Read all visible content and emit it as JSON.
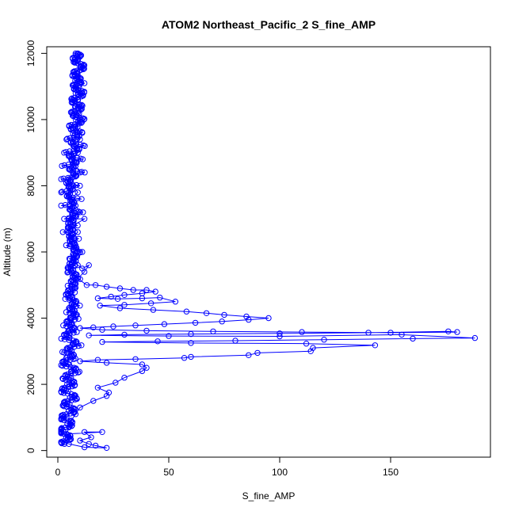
{
  "chart_data": {
    "type": "scatter",
    "title": "ATOM2 Northeast_Pacific_2 S_fine_AMP",
    "xlabel": "S_fine_AMP",
    "ylabel": "Altitude (m)",
    "xlim": [
      -5,
      195
    ],
    "ylim": [
      -200,
      12200
    ],
    "xticks": [
      0,
      50,
      100,
      150
    ],
    "yticks": [
      0,
      2000,
      4000,
      6000,
      8000,
      10000,
      12000
    ],
    "grid": false,
    "legend": "none",
    "series": [
      {
        "marker": "open-circle",
        "connected": true,
        "color": "#0000ff",
        "points": [
          [
            9,
            12000
          ],
          [
            8,
            11950
          ],
          [
            10,
            11900
          ],
          [
            9,
            11800
          ],
          [
            8,
            11750
          ],
          [
            9,
            11700
          ],
          [
            10,
            11500
          ],
          [
            9,
            11300
          ],
          [
            10,
            11100
          ],
          [
            12,
            11100
          ],
          [
            9,
            10900
          ],
          [
            10,
            10800
          ],
          [
            8,
            10800
          ],
          [
            9,
            10600
          ],
          [
            8,
            10400
          ],
          [
            9,
            10200
          ],
          [
            10,
            10000
          ],
          [
            8,
            9800
          ],
          [
            9,
            9600
          ],
          [
            10,
            9400
          ],
          [
            7,
            9200
          ],
          [
            9,
            9000
          ],
          [
            6,
            8800
          ],
          [
            8,
            8600
          ],
          [
            10,
            8400
          ],
          [
            5,
            8200
          ],
          [
            7,
            8000
          ],
          [
            9,
            7800
          ],
          [
            6,
            7600
          ],
          [
            8,
            7400
          ],
          [
            10,
            7200
          ],
          [
            5,
            7000
          ],
          [
            12,
            7000
          ],
          [
            7,
            6800
          ],
          [
            9,
            6600
          ],
          [
            6,
            6400
          ],
          [
            8,
            6200
          ],
          [
            10,
            6000
          ],
          [
            7,
            5800
          ],
          [
            9,
            5600
          ],
          [
            11,
            5500
          ],
          [
            14,
            5600
          ],
          [
            12,
            5400
          ],
          [
            9,
            5200
          ],
          [
            13,
            5000
          ],
          [
            17,
            5000
          ],
          [
            22,
            4950
          ],
          [
            28,
            4900
          ],
          [
            34,
            4850
          ],
          [
            40,
            4850
          ],
          [
            44,
            4800
          ],
          [
            38,
            4750
          ],
          [
            30,
            4700
          ],
          [
            24,
            4650
          ],
          [
            18,
            4600
          ],
          [
            27,
            4580
          ],
          [
            38,
            4600
          ],
          [
            46,
            4620
          ],
          [
            53,
            4500
          ],
          [
            42,
            4450
          ],
          [
            30,
            4400
          ],
          [
            19,
            4380
          ],
          [
            28,
            4300
          ],
          [
            43,
            4250
          ],
          [
            58,
            4200
          ],
          [
            67,
            4150
          ],
          [
            75,
            4100
          ],
          [
            85,
            4050
          ],
          [
            95,
            4000
          ],
          [
            86,
            3950
          ],
          [
            74,
            3900
          ],
          [
            62,
            3860
          ],
          [
            48,
            3820
          ],
          [
            35,
            3780
          ],
          [
            25,
            3750
          ],
          [
            16,
            3720
          ],
          [
            10,
            3700
          ],
          [
            20,
            3650
          ],
          [
            40,
            3620
          ],
          [
            70,
            3600
          ],
          [
            110,
            3580
          ],
          [
            150,
            3560
          ],
          [
            180,
            3580
          ],
          [
            176,
            3600
          ],
          [
            140,
            3560
          ],
          [
            100,
            3540
          ],
          [
            60,
            3520
          ],
          [
            30,
            3500
          ],
          [
            14,
            3480
          ],
          [
            50,
            3460
          ],
          [
            100,
            3450
          ],
          [
            155,
            3500
          ],
          [
            188,
            3400
          ],
          [
            160,
            3380
          ],
          [
            120,
            3350
          ],
          [
            80,
            3320
          ],
          [
            45,
            3300
          ],
          [
            20,
            3280
          ],
          [
            60,
            3250
          ],
          [
            112,
            3230
          ],
          [
            143,
            3180
          ],
          [
            115,
            3100
          ],
          [
            114,
            3000
          ],
          [
            90,
            2950
          ],
          [
            86,
            2880
          ],
          [
            60,
            2830
          ],
          [
            57,
            2800
          ],
          [
            35,
            2760
          ],
          [
            18,
            2740
          ],
          [
            10,
            2700
          ],
          [
            22,
            2650
          ],
          [
            38,
            2600
          ],
          [
            40,
            2500
          ],
          [
            38,
            2400
          ],
          [
            30,
            2200
          ],
          [
            26,
            2050
          ],
          [
            18,
            1900
          ],
          [
            23,
            1750
          ],
          [
            22,
            1650
          ],
          [
            16,
            1500
          ],
          [
            10,
            1300
          ],
          [
            8,
            1100
          ],
          [
            6,
            900
          ],
          [
            5,
            700
          ],
          [
            4,
            500
          ],
          [
            20,
            560
          ],
          [
            12,
            560
          ],
          [
            15,
            400
          ],
          [
            10,
            300
          ],
          [
            14,
            200
          ],
          [
            17,
            150
          ],
          [
            22,
            80
          ],
          [
            12,
            100
          ],
          [
            5,
            200
          ],
          [
            3,
            250
          ]
        ]
      },
      {
        "marker": "open-circle",
        "connected": true,
        "color": "#0000ff",
        "dense_profile": [
          [
            3,
            200
          ],
          [
            4,
            400
          ],
          [
            2,
            600
          ],
          [
            5,
            800
          ],
          [
            3,
            1000
          ],
          [
            6,
            1200
          ],
          [
            4,
            1400
          ],
          [
            7,
            1600
          ],
          [
            3,
            1800
          ],
          [
            6,
            2000
          ],
          [
            4,
            2200
          ],
          [
            8,
            2400
          ],
          [
            3,
            2600
          ],
          [
            6,
            2800
          ],
          [
            4,
            3000
          ],
          [
            9,
            3200
          ],
          [
            3,
            3400
          ],
          [
            7,
            3600
          ],
          [
            4,
            3800
          ],
          [
            8,
            4000
          ],
          [
            5,
            4200
          ],
          [
            9,
            4400
          ],
          [
            4,
            4600
          ],
          [
            7,
            4800
          ],
          [
            5,
            5000
          ],
          [
            10,
            5200
          ],
          [
            4,
            5400
          ],
          [
            8,
            5600
          ],
          [
            5,
            5800
          ],
          [
            11,
            6000
          ],
          [
            4,
            6200
          ],
          [
            9,
            6400
          ],
          [
            3,
            6600
          ],
          [
            8,
            6800
          ],
          [
            4,
            7000
          ],
          [
            10,
            7200
          ],
          [
            3,
            7400
          ],
          [
            9,
            7600
          ],
          [
            2,
            7800
          ],
          [
            8,
            8000
          ],
          [
            3,
            8200
          ],
          [
            10,
            8400
          ],
          [
            4,
            8600
          ],
          [
            9,
            8800
          ],
          [
            5,
            9000
          ],
          [
            10,
            9200
          ],
          [
            6,
            9400
          ],
          [
            9,
            9600
          ],
          [
            7,
            9800
          ],
          [
            10,
            10000
          ],
          [
            8,
            10200
          ],
          [
            9,
            10400
          ],
          [
            8,
            10600
          ],
          [
            10,
            10800
          ],
          [
            9,
            11000
          ],
          [
            8,
            11200
          ],
          [
            9,
            11400
          ],
          [
            10,
            11600
          ],
          [
            9,
            11800
          ],
          [
            8,
            12000
          ]
        ]
      }
    ]
  }
}
